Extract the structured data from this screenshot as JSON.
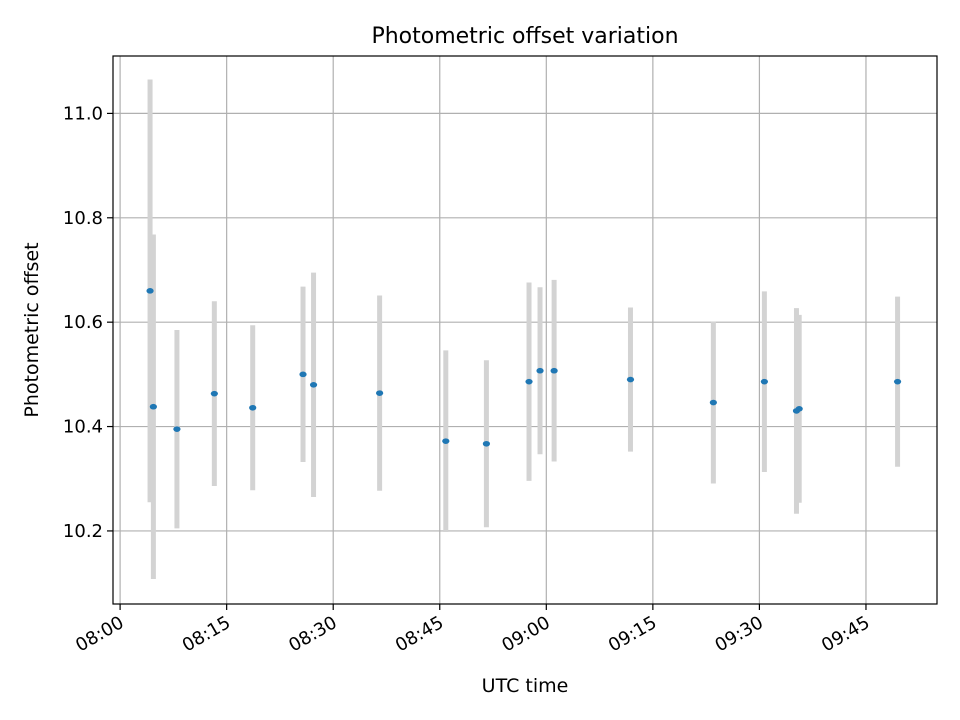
{
  "chart_data": {
    "type": "scatter",
    "title": "Photometric offset variation",
    "xlabel": "UTC time",
    "ylabel": "Photometric offset",
    "x_ticks": [
      "08:00",
      "08:15",
      "08:30",
      "08:45",
      "09:00",
      "09:15",
      "09:30",
      "09:45"
    ],
    "y_ticks": [
      "10.2",
      "10.4",
      "10.6",
      "10.8",
      "11.0"
    ],
    "xlim": [
      "07:59",
      "09:55"
    ],
    "ylim": [
      10.06,
      11.11
    ],
    "grid": true,
    "point_color": "#1f77b4",
    "errorbar_color": "#d3d3d3",
    "points": [
      {
        "x": "08:04:13",
        "y": 10.66,
        "yerr": 0.405
      },
      {
        "x": "08:04:41",
        "y": 10.438,
        "yerr": 0.33
      },
      {
        "x": "08:08:00",
        "y": 10.395,
        "yerr": 0.19
      },
      {
        "x": "08:13:16",
        "y": 10.463,
        "yerr": 0.177
      },
      {
        "x": "08:18:40",
        "y": 10.436,
        "yerr": 0.158
      },
      {
        "x": "08:25:45",
        "y": 10.5,
        "yerr": 0.168
      },
      {
        "x": "08:27:14",
        "y": 10.48,
        "yerr": 0.215
      },
      {
        "x": "08:36:32",
        "y": 10.464,
        "yerr": 0.187
      },
      {
        "x": "08:45:51",
        "y": 10.372,
        "yerr": 0.174
      },
      {
        "x": "08:51:34",
        "y": 10.367,
        "yerr": 0.16
      },
      {
        "x": "08:57:34",
        "y": 10.486,
        "yerr": 0.19
      },
      {
        "x": "08:59:07",
        "y": 10.507,
        "yerr": 0.16
      },
      {
        "x": "09:01:06",
        "y": 10.507,
        "yerr": 0.174
      },
      {
        "x": "09:11:51",
        "y": 10.49,
        "yerr": 0.138
      },
      {
        "x": "09:23:31",
        "y": 10.446,
        "yerr": 0.155
      },
      {
        "x": "09:30:42",
        "y": 10.486,
        "yerr": 0.173
      },
      {
        "x": "09:35:13",
        "y": 10.43,
        "yerr": 0.197
      },
      {
        "x": "09:35:36",
        "y": 10.434,
        "yerr": 0.18
      },
      {
        "x": "09:49:27",
        "y": 10.486,
        "yerr": 0.163
      }
    ]
  }
}
